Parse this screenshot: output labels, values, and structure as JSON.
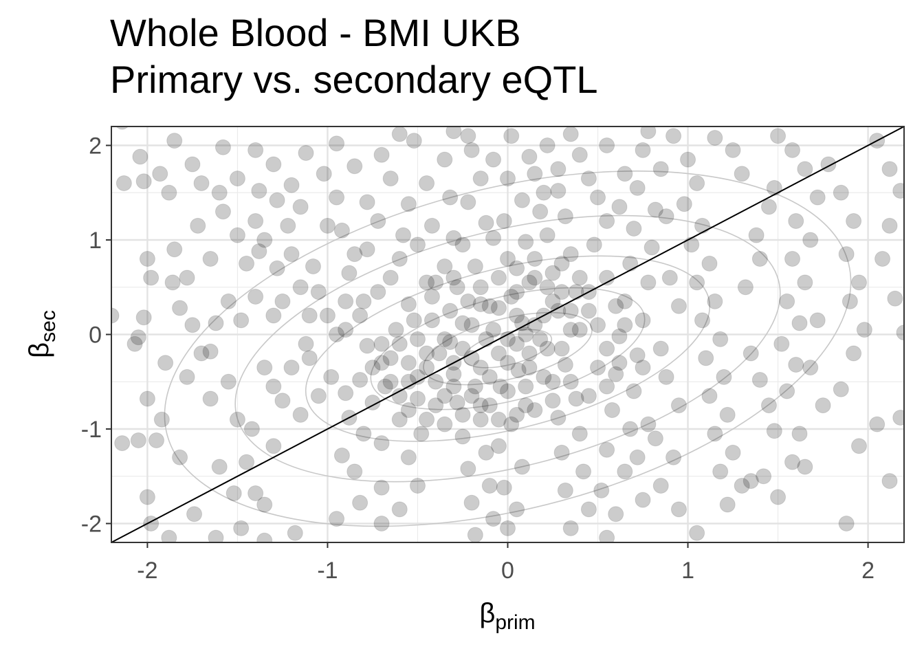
{
  "chart_data": {
    "type": "scatter",
    "title_line1": "Whole Blood - BMI UKB",
    "title_line2": "Primary vs. secondary eQTL",
    "xlabel_symbol": "β",
    "xlabel_sub": "prim",
    "ylabel_symbol": "β",
    "ylabel_sub": "sec",
    "xlim": [
      -2.2,
      2.2
    ],
    "ylim": [
      -2.2,
      2.2
    ],
    "xticks": [
      -2,
      -1,
      0,
      1,
      2
    ],
    "yticks": [
      -2,
      -1,
      0,
      1,
      2
    ],
    "xtick_labels": [
      "-2",
      "-1",
      "0",
      "1",
      "2"
    ],
    "ytick_labels": [
      "-2",
      "-1",
      "0",
      "1",
      "2"
    ],
    "grid": true,
    "point_color": "#000000",
    "point_opacity": 0.2,
    "reference_line": {
      "slope": 1,
      "intercept": 0,
      "color": "#000000"
    },
    "density_contours": true,
    "contour_color": "#c8c8c8",
    "panel_border": "#333333",
    "n_points_shown": 1400,
    "points_note": "approximate",
    "points": [
      [
        -2.14,
        2.25
      ],
      [
        -2.13,
        1.6
      ],
      [
        -2.04,
        1.88
      ],
      [
        -2.02,
        1.62
      ],
      [
        -1.93,
        1.7
      ],
      [
        -1.88,
        1.5
      ],
      [
        -2.0,
        0.8
      ],
      [
        -1.98,
        0.6
      ],
      [
        -1.86,
        0.55
      ],
      [
        -1.82,
        0.28
      ],
      [
        -2.02,
        0.18
      ],
      [
        -2.2,
        0.2
      ],
      [
        -2.07,
        -0.1
      ],
      [
        -2.05,
        -0.03
      ],
      [
        -1.9,
        -0.3
      ],
      [
        -1.78,
        -0.45
      ],
      [
        -2.0,
        -0.68
      ],
      [
        -1.92,
        -0.9
      ],
      [
        -2.14,
        -1.15
      ],
      [
        -2.05,
        -1.12
      ],
      [
        -1.95,
        -1.12
      ],
      [
        -1.82,
        -1.3
      ],
      [
        -2.0,
        -1.72
      ],
      [
        -1.98,
        -2.0
      ],
      [
        -1.88,
        -2.15
      ],
      [
        -1.74,
        -1.9
      ],
      [
        -1.62,
        -2.15
      ],
      [
        -1.7,
        1.6
      ],
      [
        -1.58,
        1.98
      ],
      [
        -1.6,
        1.5
      ],
      [
        -1.5,
        1.65
      ],
      [
        -1.38,
        1.52
      ],
      [
        -1.28,
        1.42
      ],
      [
        -1.22,
        1.15
      ],
      [
        -1.35,
        1.0
      ],
      [
        -1.45,
        0.75
      ],
      [
        -1.55,
        0.35
      ],
      [
        -1.48,
        0.15
      ],
      [
        -1.62,
        0.12
      ],
      [
        -1.65,
        -0.18
      ],
      [
        -1.55,
        -0.5
      ],
      [
        -1.65,
        -0.68
      ],
      [
        -1.5,
        -0.9
      ],
      [
        -1.42,
        -1.0
      ],
      [
        -1.3,
        -1.18
      ],
      [
        -1.45,
        -1.35
      ],
      [
        -1.6,
        -1.4
      ],
      [
        -1.52,
        -1.68
      ],
      [
        -1.4,
        -1.68
      ],
      [
        -1.35,
        -1.8
      ],
      [
        -1.48,
        -2.05
      ],
      [
        -1.35,
        -2.18
      ],
      [
        -1.18,
        -2.1
      ],
      [
        -1.3,
        -0.55
      ],
      [
        -1.2,
        -0.35
      ],
      [
        -1.12,
        -0.1
      ],
      [
        -1.1,
        0.2
      ],
      [
        -1.25,
        0.35
      ],
      [
        -1.15,
        0.5
      ],
      [
        -1.05,
        0.45
      ],
      [
        -1.0,
        0.2
      ],
      [
        -1.08,
        0.72
      ],
      [
        -1.2,
        0.85
      ],
      [
        -1.0,
        1.15
      ],
      [
        -0.95,
        1.45
      ],
      [
        -1.02,
        1.7
      ],
      [
        -1.12,
        1.92
      ],
      [
        -0.95,
        2.02
      ],
      [
        -0.85,
        1.78
      ],
      [
        -0.78,
        1.4
      ],
      [
        -0.72,
        1.2
      ],
      [
        -0.78,
        0.9
      ],
      [
        -0.88,
        0.65
      ],
      [
        -0.72,
        0.45
      ],
      [
        -0.82,
        0.2
      ],
      [
        -0.9,
        0.05
      ],
      [
        -0.78,
        -0.12
      ],
      [
        -0.7,
        -0.3
      ],
      [
        -0.82,
        -0.48
      ],
      [
        -0.9,
        -0.62
      ],
      [
        -0.75,
        -0.72
      ],
      [
        -0.88,
        -0.88
      ],
      [
        -0.8,
        -1.05
      ],
      [
        -0.7,
        -1.15
      ],
      [
        -0.92,
        -1.28
      ],
      [
        -0.85,
        -1.45
      ],
      [
        -0.7,
        -1.62
      ],
      [
        -0.82,
        -1.78
      ],
      [
        -0.95,
        -1.95
      ],
      [
        -0.7,
        -2.0
      ],
      [
        -0.6,
        -1.85
      ],
      [
        -0.5,
        -1.6
      ],
      [
        -0.55,
        -1.3
      ],
      [
        -0.48,
        -1.05
      ],
      [
        -0.6,
        -0.9
      ],
      [
        -0.5,
        -0.68
      ],
      [
        -0.55,
        -0.5
      ],
      [
        -0.45,
        -0.35
      ],
      [
        -0.38,
        -0.2
      ],
      [
        -0.5,
        -0.05
      ],
      [
        -0.42,
        0.15
      ],
      [
        -0.55,
        0.32
      ],
      [
        -0.45,
        0.55
      ],
      [
        -0.35,
        0.72
      ],
      [
        -0.5,
        0.95
      ],
      [
        -0.42,
        1.15
      ],
      [
        -0.55,
        1.38
      ],
      [
        -0.45,
        1.6
      ],
      [
        -0.35,
        1.85
      ],
      [
        -0.52,
        2.05
      ],
      [
        -0.3,
        2.15
      ],
      [
        -0.2,
        1.95
      ],
      [
        -0.15,
        1.65
      ],
      [
        -0.22,
        1.4
      ],
      [
        -0.12,
        1.18
      ],
      [
        -0.25,
        0.95
      ],
      [
        -0.18,
        0.72
      ],
      [
        -0.28,
        0.5
      ],
      [
        -0.15,
        0.32
      ],
      [
        -0.25,
        0.12
      ],
      [
        -0.32,
        -0.08
      ],
      [
        -0.2,
        -0.25
      ],
      [
        -0.3,
        -0.42
      ],
      [
        -0.18,
        -0.55
      ],
      [
        -0.28,
        -0.72
      ],
      [
        -0.15,
        -0.9
      ],
      [
        -0.25,
        -1.08
      ],
      [
        -0.12,
        -1.25
      ],
      [
        -0.22,
        -1.42
      ],
      [
        -0.1,
        -1.6
      ],
      [
        -0.2,
        -1.78
      ],
      [
        -0.08,
        -1.95
      ],
      [
        -0.18,
        -2.12
      ],
      [
        0.0,
        -2.05
      ],
      [
        0.05,
        -1.85
      ],
      [
        -0.02,
        -1.62
      ],
      [
        0.08,
        -1.4
      ],
      [
        -0.05,
        -1.18
      ],
      [
        0.02,
        -0.95
      ],
      [
        0.1,
        -0.75
      ],
      [
        -0.04,
        -0.55
      ],
      [
        0.06,
        -0.38
      ],
      [
        0.12,
        -0.2
      ],
      [
        0.0,
        -0.05
      ],
      [
        0.08,
        0.12
      ],
      [
        -0.05,
        0.28
      ],
      [
        0.05,
        0.45
      ],
      [
        0.15,
        0.6
      ],
      [
        0.0,
        0.8
      ],
      [
        0.1,
        0.98
      ],
      [
        -0.02,
        1.2
      ],
      [
        0.08,
        1.42
      ],
      [
        0.0,
        1.65
      ],
      [
        0.12,
        1.88
      ],
      [
        0.02,
        2.1
      ],
      [
        0.22,
        2.0
      ],
      [
        0.28,
        1.75
      ],
      [
        0.2,
        1.5
      ],
      [
        0.32,
        1.25
      ],
      [
        0.22,
        1.05
      ],
      [
        0.35,
        0.85
      ],
      [
        0.25,
        0.65
      ],
      [
        0.38,
        0.45
      ],
      [
        0.28,
        0.25
      ],
      [
        0.35,
        0.05
      ],
      [
        0.22,
        -0.15
      ],
      [
        0.32,
        -0.32
      ],
      [
        0.25,
        -0.5
      ],
      [
        0.38,
        -0.68
      ],
      [
        0.28,
        -0.88
      ],
      [
        0.4,
        -1.05
      ],
      [
        0.3,
        -1.25
      ],
      [
        0.42,
        -1.45
      ],
      [
        0.32,
        -1.65
      ],
      [
        0.45,
        -1.85
      ],
      [
        0.35,
        -2.05
      ],
      [
        0.55,
        -2.15
      ],
      [
        0.6,
        -1.9
      ],
      [
        0.52,
        -1.65
      ],
      [
        0.65,
        -1.45
      ],
      [
        0.55,
        -1.22
      ],
      [
        0.68,
        -1.0
      ],
      [
        0.58,
        -0.8
      ],
      [
        0.7,
        -0.6
      ],
      [
        0.6,
        -0.42
      ],
      [
        0.72,
        -0.22
      ],
      [
        0.62,
        -0.02
      ],
      [
        0.75,
        0.15
      ],
      [
        0.65,
        0.35
      ],
      [
        0.78,
        0.55
      ],
      [
        0.68,
        0.75
      ],
      [
        0.8,
        0.92
      ],
      [
        0.7,
        1.12
      ],
      [
        0.82,
        1.32
      ],
      [
        0.72,
        1.55
      ],
      [
        0.85,
        1.75
      ],
      [
        0.75,
        1.95
      ],
      [
        0.92,
        2.1
      ],
      [
        1.0,
        1.85
      ],
      [
        1.05,
        1.6
      ],
      [
        0.98,
        1.38
      ],
      [
        1.08,
        1.15
      ],
      [
        1.02,
        0.95
      ],
      [
        1.12,
        0.75
      ],
      [
        1.05,
        0.55
      ],
      [
        1.15,
        0.35
      ],
      [
        1.08,
        0.15
      ],
      [
        1.18,
        -0.05
      ],
      [
        1.1,
        -0.25
      ],
      [
        1.2,
        -0.45
      ],
      [
        1.12,
        -0.65
      ],
      [
        1.22,
        -0.85
      ],
      [
        1.15,
        -1.05
      ],
      [
        1.25,
        -1.25
      ],
      [
        1.18,
        -1.45
      ],
      [
        1.3,
        -1.6
      ],
      [
        1.22,
        -1.8
      ],
      [
        1.05,
        -2.1
      ],
      [
        1.35,
        -1.55
      ],
      [
        1.42,
        -1.5
      ],
      [
        1.5,
        -1.72
      ],
      [
        1.45,
        -0.75
      ],
      [
        1.55,
        -0.6
      ],
      [
        1.6,
        -0.32
      ],
      [
        1.52,
        -0.1
      ],
      [
        1.62,
        0.12
      ],
      [
        1.55,
        0.35
      ],
      [
        1.65,
        0.55
      ],
      [
        1.58,
        0.8
      ],
      [
        1.68,
        1.0
      ],
      [
        1.6,
        1.2
      ],
      [
        1.72,
        1.45
      ],
      [
        1.65,
        1.75
      ],
      [
        1.78,
        1.8
      ],
      [
        1.85,
        1.5
      ],
      [
        1.92,
        1.2
      ],
      [
        1.88,
        0.85
      ],
      [
        1.95,
        0.55
      ],
      [
        1.9,
        0.35
      ],
      [
        1.98,
        0.05
      ],
      [
        1.92,
        -0.2
      ],
      [
        1.85,
        -0.58
      ],
      [
        1.95,
        -1.18
      ],
      [
        1.88,
        -2.0
      ],
      [
        2.05,
        -0.95
      ],
      [
        2.12,
        -1.55
      ],
      [
        2.18,
        -0.88
      ],
      [
        2.2,
        0.02
      ],
      [
        2.15,
        0.38
      ],
      [
        2.08,
        0.8
      ],
      [
        2.12,
        1.15
      ],
      [
        2.18,
        1.52
      ],
      [
        2.05,
        2.05
      ],
      [
        2.12,
        1.75
      ],
      [
        1.72,
        0.15
      ],
      [
        1.68,
        -0.35
      ],
      [
        1.75,
        -0.75
      ],
      [
        1.62,
        -1.05
      ],
      [
        1.65,
        -1.4
      ],
      [
        1.58,
        -1.35
      ],
      [
        1.48,
        -1.02
      ],
      [
        1.4,
        -0.48
      ],
      [
        1.35,
        -0.2
      ],
      [
        1.32,
        0.5
      ],
      [
        1.4,
        0.8
      ],
      [
        1.38,
        1.05
      ],
      [
        1.45,
        1.35
      ],
      [
        1.48,
        1.55
      ],
      [
        1.3,
        1.7
      ],
      [
        1.25,
        1.95
      ],
      [
        -0.65,
        -0.25
      ],
      [
        -0.6,
        -0.1
      ],
      [
        -0.4,
        -0.5
      ],
      [
        -0.35,
        -0.65
      ],
      [
        -0.3,
        -0.3
      ],
      [
        -0.25,
        -0.15
      ],
      [
        -0.15,
        -0.35
      ],
      [
        -0.1,
        -0.45
      ],
      [
        -0.05,
        -0.2
      ],
      [
        0.0,
        -0.3
      ],
      [
        0.05,
        -0.1
      ],
      [
        0.1,
        0.0
      ],
      [
        0.15,
        0.1
      ],
      [
        0.2,
        0.2
      ],
      [
        0.25,
        0.35
      ],
      [
        0.3,
        0.45
      ],
      [
        0.18,
        -0.05
      ],
      [
        0.12,
        -0.35
      ],
      [
        0.05,
        0.2
      ],
      [
        -0.08,
        0.05
      ],
      [
        -0.12,
        -0.05
      ],
      [
        -0.2,
        0.1
      ],
      [
        -0.35,
        -0.05
      ],
      [
        -0.45,
        -0.2
      ],
      [
        -0.55,
        -0.3
      ],
      [
        -0.5,
        -0.45
      ],
      [
        -0.65,
        -0.5
      ],
      [
        -0.6,
        -0.65
      ],
      [
        -0.4,
        -0.75
      ],
      [
        -0.3,
        -0.55
      ],
      [
        -0.2,
        -0.65
      ],
      [
        -0.1,
        -0.75
      ],
      [
        0.0,
        -0.6
      ],
      [
        0.1,
        -0.55
      ],
      [
        0.2,
        -0.45
      ],
      [
        0.3,
        -0.15
      ],
      [
        0.4,
        0.05
      ],
      [
        0.45,
        0.25
      ],
      [
        0.35,
        0.25
      ],
      [
        0.22,
        0.5
      ],
      [
        0.12,
        0.55
      ],
      [
        0.02,
        0.4
      ],
      [
        -0.1,
        0.3
      ],
      [
        -0.22,
        0.35
      ],
      [
        -0.32,
        0.25
      ],
      [
        -0.42,
        0.4
      ],
      [
        -0.52,
        0.15
      ],
      [
        -0.62,
        0.05
      ],
      [
        -0.7,
        -0.1
      ],
      [
        -0.75,
        -0.35
      ],
      [
        -0.68,
        -0.55
      ],
      [
        0.5,
        -0.35
      ],
      [
        0.55,
        -0.15
      ],
      [
        0.5,
        0.1
      ],
      [
        0.45,
        0.45
      ],
      [
        0.4,
        0.6
      ],
      [
        0.3,
        0.75
      ],
      [
        0.15,
        0.8
      ],
      [
        0.05,
        0.7
      ],
      [
        -0.05,
        0.6
      ],
      [
        -0.15,
        0.5
      ],
      [
        -0.3,
        0.6
      ],
      [
        -0.4,
        0.55
      ],
      [
        0.6,
        0.3
      ],
      [
        0.65,
        0.1
      ],
      [
        0.62,
        -0.3
      ],
      [
        0.55,
        -0.55
      ],
      [
        0.45,
        -0.65
      ],
      [
        0.35,
        -0.5
      ],
      [
        0.25,
        -0.7
      ],
      [
        0.15,
        -0.8
      ],
      [
        0.05,
        -0.85
      ],
      [
        -0.05,
        -0.9
      ],
      [
        -0.15,
        -0.75
      ],
      [
        -0.25,
        -0.85
      ],
      [
        -0.35,
        -0.95
      ],
      [
        -0.45,
        -0.9
      ],
      [
        -0.55,
        -0.8
      ],
      [
        -1.7,
        -0.2
      ],
      [
        -1.75,
        0.1
      ],
      [
        -1.4,
        0.4
      ],
      [
        -1.3,
        0.2
      ],
      [
        -1.35,
        -0.35
      ],
      [
        -1.25,
        -0.7
      ],
      [
        -1.15,
        -0.85
      ],
      [
        -1.05,
        -0.65
      ],
      [
        -0.98,
        -0.45
      ],
      [
        -1.1,
        -0.25
      ],
      [
        -0.95,
        0.0
      ],
      [
        -0.9,
        0.35
      ],
      [
        -1.28,
        0.7
      ],
      [
        -1.38,
        0.88
      ],
      [
        -1.5,
        1.05
      ],
      [
        -1.65,
        0.8
      ],
      [
        -1.78,
        0.6
      ],
      [
        -1.85,
        0.9
      ],
      [
        -1.72,
        1.15
      ],
      [
        -1.58,
        1.3
      ],
      [
        -1.4,
        1.2
      ],
      [
        -1.2,
        1.58
      ],
      [
        -1.3,
        1.8
      ],
      [
        -1.4,
        1.95
      ],
      [
        -1.85,
        2.05
      ],
      [
        -1.75,
        1.8
      ],
      [
        -0.65,
        1.65
      ],
      [
        -0.7,
        1.9
      ],
      [
        -0.6,
        2.12
      ],
      [
        -0.65,
        0.6
      ],
      [
        -0.6,
        0.8
      ],
      [
        0.48,
        0.95
      ],
      [
        0.55,
        1.2
      ],
      [
        0.5,
        1.45
      ],
      [
        0.45,
        1.65
      ],
      [
        0.4,
        1.9
      ],
      [
        0.55,
        2.0
      ],
      [
        0.65,
        1.7
      ],
      [
        0.62,
        1.35
      ],
      [
        0.88,
        1.25
      ],
      [
        0.9,
        0.6
      ],
      [
        0.95,
        0.3
      ],
      [
        0.85,
        -0.15
      ],
      [
        0.88,
        -0.45
      ],
      [
        0.95,
        -0.75
      ],
      [
        0.82,
        -1.1
      ],
      [
        0.92,
        -1.3
      ],
      [
        0.85,
        -1.6
      ],
      [
        0.95,
        -1.85
      ],
      [
        0.75,
        -1.75
      ],
      [
        0.72,
        -1.3
      ],
      [
        0.78,
        -0.95
      ],
      [
        0.75,
        -0.35
      ],
      [
        0.55,
        0.6
      ],
      [
        -0.8,
        0.35
      ],
      [
        -0.85,
        0.85
      ],
      [
        -0.92,
        1.1
      ],
      [
        -1.15,
        1.35
      ],
      [
        -0.58,
        1.05
      ],
      [
        -0.32,
        1.45
      ],
      [
        -0.3,
        1.02
      ],
      [
        -0.08,
        1.02
      ],
      [
        0.18,
        1.3
      ],
      [
        0.28,
        1.52
      ],
      [
        0.15,
        1.7
      ],
      [
        -0.08,
        1.85
      ],
      [
        -0.22,
        2.1
      ],
      [
        0.35,
        2.12
      ],
      [
        0.78,
        2.15
      ],
      [
        1.15,
        2.08
      ],
      [
        1.5,
        2.1
      ],
      [
        1.58,
        1.95
      ]
    ]
  }
}
